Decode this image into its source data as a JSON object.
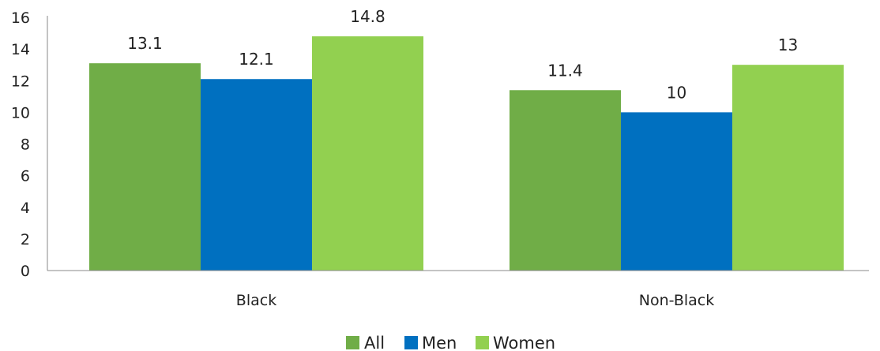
{
  "chart_data": {
    "type": "bar",
    "categories": [
      "Black",
      "Non-Black"
    ],
    "series": [
      {
        "name": "All",
        "values": [
          13.1,
          11.4
        ],
        "color": "#70ad47"
      },
      {
        "name": "Men",
        "values": [
          12.1,
          10
        ],
        "color": "#0070c0"
      },
      {
        "name": "Women",
        "values": [
          14.8,
          13
        ],
        "color": "#92d050"
      }
    ],
    "data_labels": [
      [
        "13.1",
        "11.4"
      ],
      [
        "12.1",
        "10"
      ],
      [
        "14.8",
        "13"
      ]
    ],
    "yticks": [
      "0",
      "2",
      "4",
      "6",
      "8",
      "10",
      "12",
      "14",
      "16"
    ],
    "ylim": [
      0,
      16
    ],
    "title": "",
    "xlabel": "",
    "ylabel": "",
    "grid": false,
    "legend_position": "bottom"
  }
}
